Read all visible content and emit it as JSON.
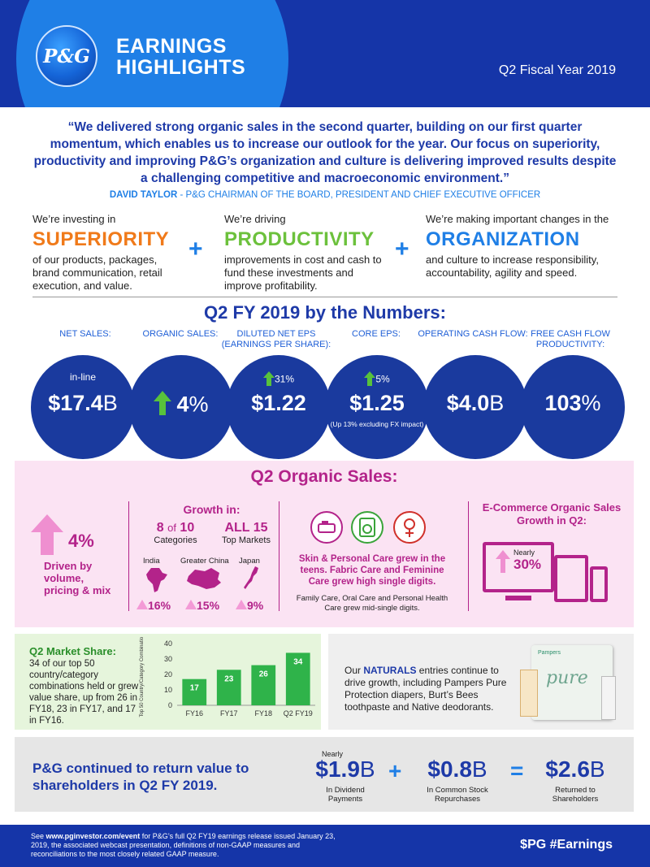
{
  "header": {
    "logo_text": "P&G",
    "title_line1": "EARNINGS",
    "title_line2": "HIGHLIGHTS",
    "subtitle": "Q2 Fiscal Year 2019",
    "color_primary": "#1535a8",
    "color_accent": "#1f7fe6"
  },
  "quote": {
    "text": "“We delivered strong organic sales in the second quarter, building on our first quarter momentum, which enables us to increase our outlook for the year. Our focus on superiority, productivity and improving P&G’s organization and culture is delivering improved results despite a challenging competitive and macroeconomic environment.”",
    "author_name": "DAVID TAYLOR",
    "author_title": " - P&G CHAIRMAN OF THE BOARD, PRESIDENT AND CHIEF EXECUTIVE OFFICER"
  },
  "pillars": [
    {
      "intro": "We’re investing in",
      "word": "SUPERIORITY",
      "color": "#f07a1a",
      "desc": "of our products, packages, brand communication, retail execution, and value."
    },
    {
      "intro": "We’re driving",
      "word": "PRODUCTIVITY",
      "color": "#6cc13c",
      "desc": "improvements in cost and cash to fund these investments and improve profitability."
    },
    {
      "intro": "We’re making important changes in the",
      "word": "ORGANIZATION",
      "color": "#1f7fe6",
      "desc": "and culture to increase responsibility, accountability, agility and speed."
    }
  ],
  "plus": "+",
  "numbers": {
    "title": "Q2 FY 2019 by the Numbers:",
    "kpis": [
      {
        "label": "NET SALES:",
        "top": "in-line",
        "value": "$17.4",
        "unit": "B",
        "note": ""
      },
      {
        "label": "ORGANIC SALES:",
        "top": "",
        "value": "4",
        "unit": "%",
        "note": ""
      },
      {
        "label": "DILUTED NET EPS (EARNINGS PER SHARE):",
        "top": "31%",
        "value": "$1.22",
        "unit": "",
        "note": ""
      },
      {
        "label": "CORE EPS:",
        "top": "5%",
        "value": "$1.25",
        "unit": "",
        "note": "(Up 13% excluding FX impact)"
      },
      {
        "label": "OPERATING CASH FLOW:",
        "top": "",
        "value": "$4.0",
        "unit": "B",
        "note": ""
      },
      {
        "label": "FREE CASH FLOW PRODUCTIVITY:",
        "top": "",
        "value": "103",
        "unit": "%",
        "note": ""
      }
    ]
  },
  "organic": {
    "title": "Q2 Organic Sales:",
    "headline_value": "4%",
    "driven_by": "Driven by volume, pricing & mix",
    "growth_title": "Growth in:",
    "cat_count": "8",
    "cat_of": "of",
    "cat_total": "10",
    "cat_label": "Categories",
    "markets_value": "ALL 15",
    "markets_label": "Top Markets",
    "regions": [
      {
        "name": "India",
        "value": "16%"
      },
      {
        "name": "Greater China",
        "value": "15%"
      },
      {
        "name": "Japan",
        "value": "9%"
      }
    ],
    "segments_main": "Skin & Personal Care grew in the teens. Fabric Care and Feminine Care grew high single digits.",
    "segments_minor": "Family Care, Oral Care and Personal Health Care grew mid-single digits.",
    "ecommerce_title": "E-Commerce Organic Sales Growth in Q2:",
    "ecommerce_prefix": "Nearly",
    "ecommerce_value": "30%",
    "color": "#b3238a"
  },
  "market_share": {
    "title": "Q2 Market Share:",
    "desc": "34 of our top 50 country/category combinations held or grew value share, up from 26 in FY18, 23 in FY17, and 17 in FY16."
  },
  "chart_data": {
    "type": "bar",
    "categories": [
      "FY16",
      "FY17",
      "FY18",
      "Q2 FY19"
    ],
    "values": [
      17,
      23,
      26,
      34
    ],
    "ylabel": "Top 50 Country/Category Combinations",
    "ylim": [
      0,
      40
    ],
    "yticks": [
      0,
      10,
      20,
      30,
      40
    ],
    "bar_color": "#2fb34a"
  },
  "naturals": {
    "pre": "Our ",
    "highlight": "NATURALS",
    "text": " entries continue to drive growth, including Pampers Pure Protection diapers, Burt’s Bees toothpaste and Native deodorants.",
    "package_text": "pure",
    "package_brand": "Pampers"
  },
  "returns": {
    "title": "P&G continued to return value to shareholders in Q2 FY 2019.",
    "dividend_prefix": "Nearly",
    "dividend_value": "$1.9",
    "dividend_unit": "B",
    "dividend_label": "In Dividend Payments",
    "plus": "+",
    "repurchase_value": "$0.8",
    "repurchase_unit": "B",
    "repurchase_label": "In Common Stock Repurchases",
    "equals": "=",
    "total_value": "$2.6",
    "total_unit": "B",
    "total_label": "Returned to Shareholders"
  },
  "footer": {
    "text_pre": "See ",
    "link": "www.pginvestor.com/event",
    "text_post": " for P&G’s full Q2 FY19 earnings release issued January 23, 2019, the associated webcast presentation, definitions of non-GAAP measures and reconciliations to the most closely related GAAP measure.",
    "hashtag": "$PG #Earnings"
  }
}
